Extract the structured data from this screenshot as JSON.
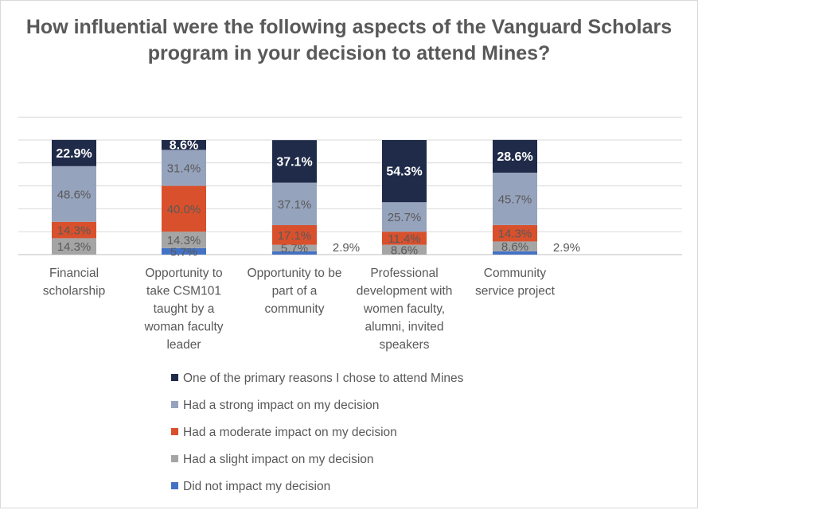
{
  "chart_data": {
    "type": "bar",
    "stacked": true,
    "title": "How influential were the following aspects of the Vanguard Scholars program in your decision to attend Mines?",
    "categories": [
      "Financial scholarship",
      "Opportunity to take CSM101 taught by a woman faculty leader",
      "Opportunity to be part of a community",
      "Professional development with women faculty, alumni, invited speakers",
      "Community service project"
    ],
    "category_lines": [
      [
        "Financial",
        "scholarship"
      ],
      [
        "Opportunity to",
        "take CSM101",
        "taught by a",
        "woman faculty",
        "leader"
      ],
      [
        "Opportunity to be",
        "part of a",
        "community"
      ],
      [
        "Professional",
        "development with",
        "women faculty,",
        "alumni, invited",
        "speakers"
      ],
      [
        "Community",
        "service project"
      ]
    ],
    "series": [
      {
        "name": "Did not impact my decision",
        "color": "#4472c4",
        "values": [
          0,
          5.7,
          2.9,
          0,
          2.9
        ],
        "labels": [
          "",
          "5.7%",
          "2.9%",
          "",
          "2.9%"
        ],
        "label_side": [
          false,
          false,
          true,
          false,
          true
        ],
        "label_color": "#595959"
      },
      {
        "name": "Had a slight impact on my decision",
        "color": "#a5a5a5",
        "values": [
          14.3,
          14.3,
          5.7,
          8.6,
          8.6
        ],
        "labels": [
          "14.3%",
          "14.3%",
          "5.7%",
          "8.6%",
          "8.6%"
        ],
        "label_color": "#595959"
      },
      {
        "name": "Had a moderate impact on my decision",
        "color": "#d9502c",
        "values": [
          14.3,
          40.0,
          17.1,
          11.4,
          14.3
        ],
        "labels": [
          "14.3%",
          "40.0%",
          "17.1%",
          "11.4%",
          "14.3%"
        ],
        "label_color": "#595959"
      },
      {
        "name": "Had a strong impact on my decision",
        "color": "#96a3bd",
        "values": [
          48.6,
          31.4,
          37.1,
          25.7,
          45.7
        ],
        "labels": [
          "48.6%",
          "31.4%",
          "37.1%",
          "25.7%",
          "45.7%"
        ],
        "label_color": "#595959"
      },
      {
        "name": "One of the primary reasons I chose to attend Mines",
        "color": "#1f2b48",
        "values": [
          22.9,
          8.6,
          37.1,
          54.3,
          28.6
        ],
        "labels": [
          "22.9%",
          "8.6%",
          "37.1%",
          "54.3%",
          "28.6%"
        ],
        "label_color": "#ffffff",
        "label_bold": true
      }
    ],
    "legend_order": [
      4,
      3,
      2,
      1,
      0
    ],
    "ylim": [
      0,
      100
    ],
    "grid": true,
    "legend_position": "bottom",
    "xlabel": "",
    "ylabel": ""
  }
}
